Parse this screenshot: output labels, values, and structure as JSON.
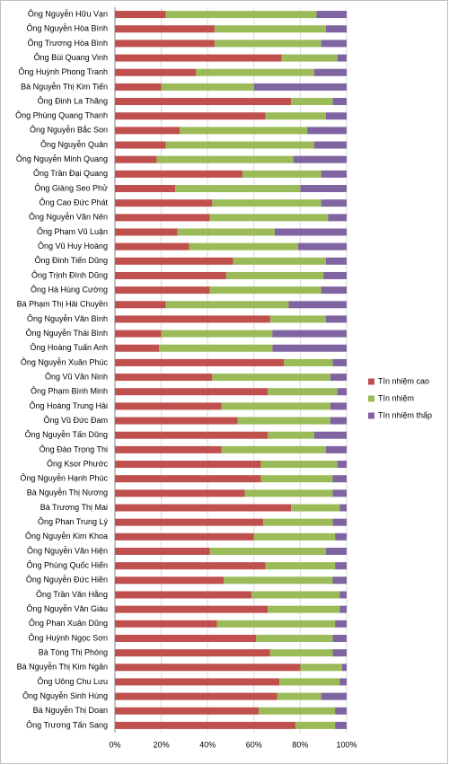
{
  "chart_data": {
    "type": "stacked-bar-horizontal",
    "categories": [
      "Ông Nguyễn Hữu Vạn",
      "Ông Nguyễn Hòa Bình",
      "Ông Trương Hòa Bình",
      "Ông Bùi Quang Vinh",
      "Ông Huỳnh Phong Tranh",
      "Bà Nguyễn Thị Kim Tiến",
      "Ông Đinh La Thăng",
      "Ông Phùng Quang Thanh",
      "Ông Nguyễn Bắc Son",
      "Ông Nguyễn Quân",
      "Ông Nguyễn Minh Quang",
      "Ông Trần Đại Quang",
      "Ông Giàng Seo Phử",
      "Ông Cao Đức Phát",
      "Ông Nguyễn Văn Nên",
      "Ông Phạm Vũ Luận",
      "Ông Vũ Huy Hoàng",
      "Ông Đinh Tiến Dũng",
      "Ông Trịnh Đình Dũng",
      "Ông Hà Hùng Cường",
      "Bà Phạm Thị Hải Chuyền",
      "Ông Nguyễn Văn Bình",
      "Ông Nguyễn Thái Bình",
      "Ông Hoàng Tuấn Anh",
      "Ông Nguyễn Xuân Phúc",
      "Ông Vũ Văn Ninh",
      "Ông Phạm Bình Minh",
      "Ông Hoàng Trung Hải",
      "Ông Vũ Đức Đam",
      "Ông Nguyễn Tấn Dũng",
      "Ông Đào Trọng Thi",
      "Ông Ksor Phước",
      "Ông Nguyễn Hạnh Phúc",
      "Bà Nguyễn Thị Nương",
      "Bà Trương Thị Mai",
      "Ông Phan Trung Lý",
      "Ông Nguyễn Kim Khoa",
      "Ông Nguyễn Văn Hiện",
      "Ông Phùng Quốc Hiển",
      "Ông Nguyễn Đức Hiền",
      "Ông Trần Văn Hằng",
      "Ông Nguyễn Văn Giàu",
      "Ông Phan Xuân Dũng",
      "Ông Huỳnh Ngọc Sơn",
      "Bà Tòng Thị Phóng",
      "Bà Nguyễn Thị Kim Ngân",
      "Ông Uông Chu Lưu",
      "Ông Nguyễn Sinh Hùng",
      "Bà Nguyễn Thị Doan",
      "Ông Trương Tấn Sang"
    ],
    "series": [
      {
        "name": "Tín nhiệm cao",
        "color": "#c0504d",
        "values": [
          22,
          43,
          43,
          72,
          35,
          20,
          76,
          65,
          28,
          22,
          18,
          55,
          26,
          42,
          41,
          27,
          32,
          51,
          48,
          41,
          22,
          67,
          20,
          19,
          73,
          42,
          66,
          46,
          53,
          66,
          46,
          63,
          63,
          56,
          76,
          64,
          60,
          41,
          65,
          47,
          59,
          66,
          44,
          61,
          67,
          80,
          71,
          70,
          62,
          78
        ]
      },
      {
        "name": "Tín nhiệm",
        "color": "#9bbb59",
        "values": [
          65,
          48,
          46,
          24,
          51,
          40,
          18,
          26,
          55,
          64,
          59,
          34,
          54,
          47,
          51,
          42,
          47,
          40,
          42,
          48,
          53,
          24,
          48,
          49,
          21,
          51,
          30,
          47,
          40,
          20,
          45,
          33,
          31,
          38,
          21,
          30,
          35,
          50,
          30,
          47,
          38,
          31,
          51,
          33,
          27,
          18,
          26,
          19,
          33,
          17
        ]
      },
      {
        "name": "Tín nhiệm thấp",
        "color": "#8064a2",
        "values": [
          13,
          9,
          11,
          4,
          14,
          40,
          6,
          9,
          17,
          14,
          23,
          11,
          20,
          11,
          8,
          31,
          21,
          9,
          10,
          11,
          25,
          9,
          32,
          32,
          6,
          7,
          4,
          7,
          7,
          14,
          9,
          4,
          6,
          6,
          3,
          6,
          5,
          9,
          5,
          6,
          3,
          3,
          5,
          6,
          6,
          2,
          3,
          11,
          5,
          5
        ]
      }
    ],
    "xlim": [
      0,
      100
    ],
    "xticks": [
      {
        "value": 0,
        "label": "0%"
      },
      {
        "value": 20,
        "label": "20%"
      },
      {
        "value": 40,
        "label": "40%"
      },
      {
        "value": 60,
        "label": "60%"
      },
      {
        "value": 80,
        "label": "80%"
      },
      {
        "value": 100,
        "label": "100%"
      }
    ],
    "grid": true,
    "legend": "right"
  }
}
